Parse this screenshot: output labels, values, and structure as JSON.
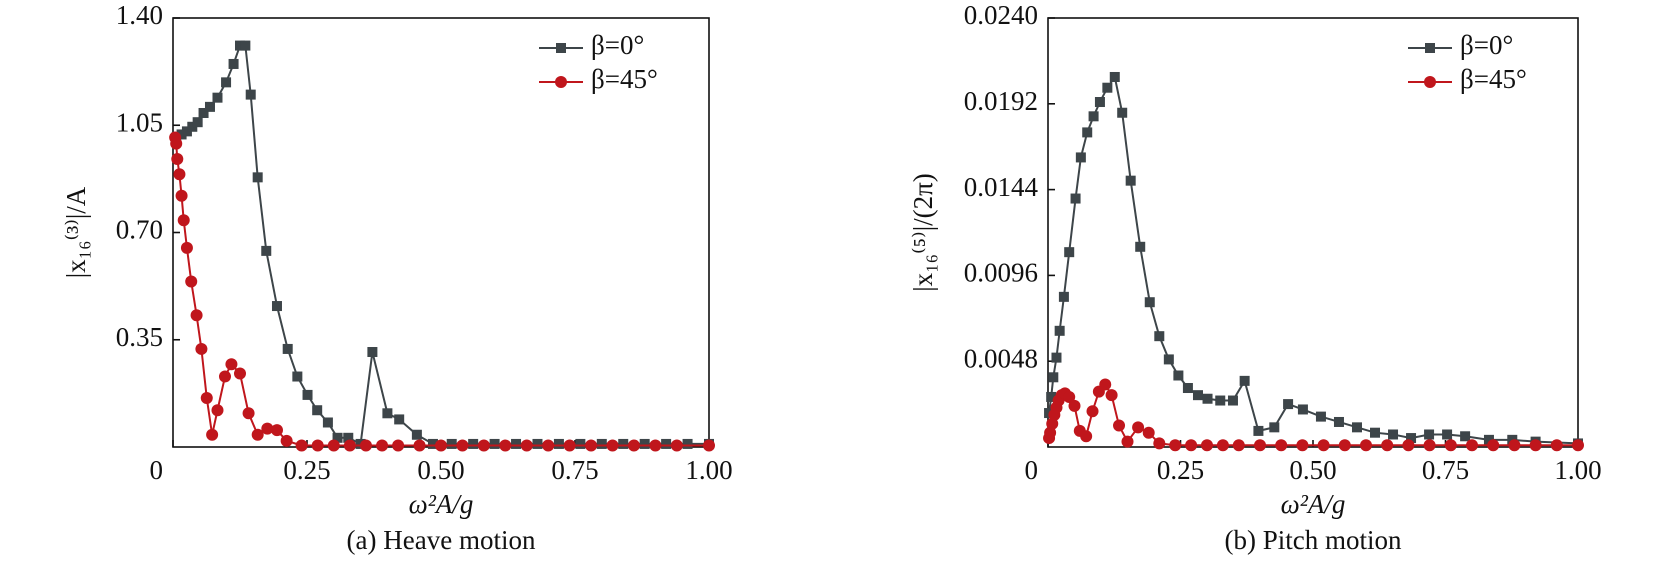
{
  "chart_data": [
    {
      "type": "line",
      "caption": "(a) Heave motion",
      "xlabel": "ω²A/g",
      "ylabel": "|x₁₆⁽³⁾|/A",
      "xlim": [
        0,
        1.0
      ],
      "ylim": [
        0,
        1.4
      ],
      "xticks": [
        0,
        0.25,
        {
          "value": 0.5,
          "label": "0.50"
        },
        0.75,
        {
          "value": 1.0,
          "label": "1.00"
        }
      ],
      "yticks": [
        0.35,
        {
          "value": 0.7,
          "label": "0.70"
        },
        1.05,
        {
          "value": 1.4,
          "label": "1.40"
        }
      ],
      "legend": "upper right",
      "series": [
        {
          "name": "β=0°",
          "color": "#3d4549",
          "marker": "square",
          "x": [
            0.006,
            0.016,
            0.026,
            0.036,
            0.046,
            0.057,
            0.069,
            0.083,
            0.099,
            0.113,
            0.125,
            0.135,
            0.145,
            0.158,
            0.174,
            0.194,
            0.214,
            0.232,
            0.251,
            0.269,
            0.289,
            0.307,
            0.327,
            0.35,
            0.372,
            0.4,
            0.422,
            0.455,
            0.485,
            0.52,
            0.56,
            0.6,
            0.64,
            0.68,
            0.72,
            0.76,
            0.8,
            0.84,
            0.88,
            0.92,
            0.96,
            1.0
          ],
          "values": [
            1.01,
            1.02,
            1.03,
            1.045,
            1.06,
            1.09,
            1.11,
            1.14,
            1.19,
            1.25,
            1.31,
            1.31,
            1.15,
            0.88,
            0.64,
            0.46,
            0.32,
            0.23,
            0.17,
            0.12,
            0.08,
            0.03,
            0.03,
            0.01,
            0.31,
            0.11,
            0.09,
            0.04,
            0.01,
            0.01,
            0.01,
            0.01,
            0.01,
            0.01,
            0.01,
            0.01,
            0.01,
            0.01,
            0.01,
            0.01,
            0.01,
            0.01
          ]
        },
        {
          "name": "β=45°",
          "color": "#c0161c",
          "marker": "circle",
          "x": [
            0.004,
            0.006,
            0.008,
            0.012,
            0.016,
            0.02,
            0.026,
            0.034,
            0.044,
            0.053,
            0.063,
            0.073,
            0.083,
            0.097,
            0.109,
            0.125,
            0.141,
            0.158,
            0.176,
            0.194,
            0.212,
            0.24,
            0.27,
            0.3,
            0.33,
            0.36,
            0.39,
            0.42,
            0.46,
            0.5,
            0.54,
            0.58,
            0.62,
            0.66,
            0.7,
            0.74,
            0.78,
            0.82,
            0.86,
            0.9,
            0.94,
            1.0
          ],
          "values": [
            1.01,
            0.99,
            0.94,
            0.89,
            0.82,
            0.74,
            0.65,
            0.54,
            0.43,
            0.32,
            0.16,
            0.04,
            0.12,
            0.23,
            0.27,
            0.24,
            0.11,
            0.04,
            0.06,
            0.055,
            0.02,
            0.005,
            0.005,
            0.005,
            0.005,
            0.005,
            0.005,
            0.005,
            0.005,
            0.005,
            0.005,
            0.005,
            0.005,
            0.005,
            0.005,
            0.005,
            0.005,
            0.005,
            0.005,
            0.005,
            0.005,
            0.005
          ]
        }
      ]
    },
    {
      "type": "line",
      "caption": "(b) Pitch motion",
      "xlabel": "ω²A/g",
      "ylabel": "|x₁₆⁽⁵⁾|/(2π)",
      "xlim": [
        0,
        1.0
      ],
      "ylim": [
        0,
        0.024
      ],
      "xticks": [
        0,
        0.25,
        {
          "value": 0.5,
          "label": "0.50"
        },
        0.75,
        {
          "value": 1.0,
          "label": "1.00"
        }
      ],
      "yticks": [
        0.0048,
        0.0096,
        0.0144,
        0.0192,
        {
          "value": 0.024,
          "label": "0.0240"
        }
      ],
      "legend": "upper right",
      "series": [
        {
          "name": "β=0°",
          "color": "#3d4549",
          "marker": "square",
          "x": [
            0.002,
            0.006,
            0.01,
            0.016,
            0.022,
            0.03,
            0.04,
            0.052,
            0.062,
            0.074,
            0.086,
            0.098,
            0.112,
            0.126,
            0.14,
            0.156,
            0.174,
            0.192,
            0.21,
            0.228,
            0.246,
            0.264,
            0.283,
            0.301,
            0.325,
            0.349,
            0.371,
            0.397,
            0.427,
            0.453,
            0.481,
            0.515,
            0.549,
            0.583,
            0.617,
            0.651,
            0.685,
            0.719,
            0.753,
            0.787,
            0.832,
            0.876,
            0.92,
            1.0
          ],
          "values": [
            0.0019,
            0.0028,
            0.0039,
            0.005,
            0.0065,
            0.0084,
            0.0109,
            0.0139,
            0.0162,
            0.0176,
            0.0185,
            0.0193,
            0.0201,
            0.0207,
            0.0187,
            0.0149,
            0.0112,
            0.0081,
            0.0062,
            0.0049,
            0.004,
            0.0033,
            0.0029,
            0.0027,
            0.0026,
            0.0026,
            0.0037,
            0.0009,
            0.0011,
            0.0024,
            0.0021,
            0.0017,
            0.0014,
            0.0011,
            0.0008,
            0.0007,
            0.0005,
            0.0007,
            0.0007,
            0.0006,
            0.0004,
            0.0004,
            0.0003,
            0.0002
          ]
        },
        {
          "name": "β=45°",
          "color": "#c0161c",
          "marker": "circle",
          "x": [
            0.002,
            0.004,
            0.008,
            0.012,
            0.016,
            0.02,
            0.026,
            0.032,
            0.04,
            0.05,
            0.06,
            0.072,
            0.084,
            0.096,
            0.108,
            0.12,
            0.134,
            0.15,
            0.17,
            0.19,
            0.21,
            0.24,
            0.27,
            0.3,
            0.33,
            0.36,
            0.4,
            0.44,
            0.48,
            0.52,
            0.56,
            0.6,
            0.64,
            0.68,
            0.72,
            0.76,
            0.8,
            0.84,
            0.88,
            0.92,
            0.96,
            1.0
          ],
          "values": [
            0.0005,
            0.0008,
            0.0013,
            0.0018,
            0.0022,
            0.0026,
            0.0029,
            0.003,
            0.0028,
            0.0023,
            0.0009,
            0.0006,
            0.002,
            0.0031,
            0.0035,
            0.0029,
            0.0012,
            0.0003,
            0.0011,
            0.0008,
            0.0002,
            0.0001,
            0.0001,
            0.0001,
            0.0001,
            0.0001,
            0.0001,
            0.0001,
            0.0001,
            0.0001,
            0.0001,
            0.0001,
            0.0001,
            0.0001,
            0.0001,
            0.0001,
            0.0001,
            0.0001,
            0.0001,
            0.0001,
            0.0001,
            0.0001
          ]
        }
      ]
    }
  ]
}
